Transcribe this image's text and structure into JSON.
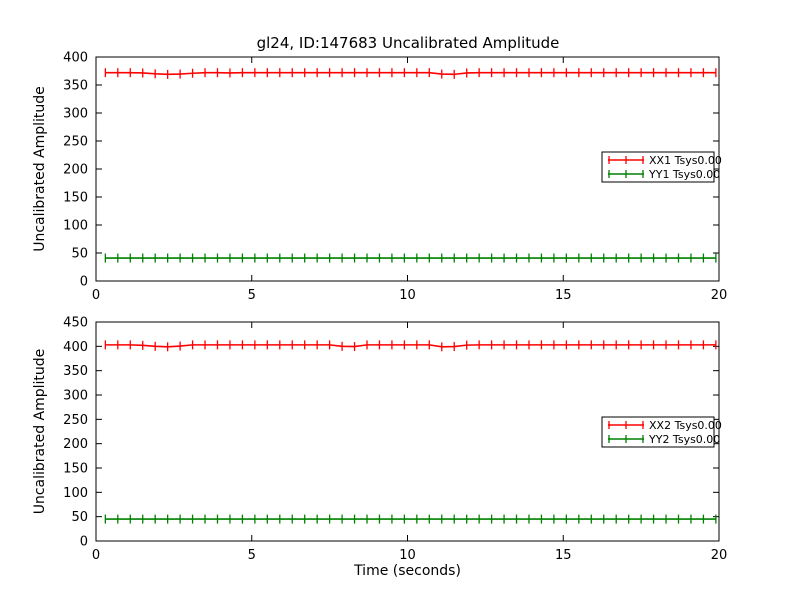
{
  "title": "gl24, ID:147683 Uncalibrated Amplitude",
  "colors": {
    "red": "#ff0000",
    "green": "#008000",
    "axis": "#000000",
    "background": "#ffffff"
  },
  "chart_data": [
    {
      "type": "line",
      "marker_style": "errorbar-caps",
      "xlabel": "",
      "ylabel": "Uncalibrated Amplitude",
      "xlim": [
        0,
        20
      ],
      "ylim": [
        0,
        400
      ],
      "xticks": [
        0,
        5,
        10,
        15,
        20
      ],
      "yticks": [
        0,
        50,
        100,
        150,
        200,
        250,
        300,
        350,
        400
      ],
      "grid": false,
      "legend_position": "center-right",
      "x": [
        0.3,
        0.7,
        1.1,
        1.5,
        1.9,
        2.3,
        2.7,
        3.1,
        3.5,
        3.9,
        4.3,
        4.7,
        5.1,
        5.5,
        5.9,
        6.3,
        6.7,
        7.1,
        7.5,
        7.9,
        8.3,
        8.7,
        9.1,
        9.5,
        9.9,
        10.3,
        10.7,
        11.1,
        11.5,
        11.9,
        12.3,
        12.7,
        13.1,
        13.5,
        13.9,
        14.3,
        14.7,
        15.1,
        15.5,
        15.9,
        16.3,
        16.7,
        17.1,
        17.5,
        17.9,
        18.3,
        18.7,
        19.1,
        19.5,
        19.9
      ],
      "series": [
        {
          "name": "XX1 Tsys0.00",
          "color": "#ff0000",
          "values": [
            372,
            372,
            372,
            371.5,
            370,
            369,
            369.5,
            371,
            372,
            372,
            371.5,
            372,
            372,
            372,
            372,
            372,
            372,
            372,
            372,
            372,
            372,
            372,
            372,
            372,
            372,
            372,
            372,
            369.5,
            369,
            371.5,
            372,
            372,
            372,
            372,
            372,
            372,
            372,
            372,
            372,
            372,
            372,
            372,
            372,
            372,
            372,
            372,
            372,
            372,
            372,
            372
          ]
        },
        {
          "name": "YY1 Tsys0.00",
          "color": "#008000",
          "values": [
            41,
            41,
            41,
            41,
            41,
            41,
            41,
            41,
            41,
            41,
            41,
            41,
            41,
            41,
            41,
            41,
            41,
            41,
            41,
            41,
            41,
            41,
            41,
            41,
            41,
            41,
            41,
            41,
            41,
            41,
            41,
            41,
            41,
            41,
            41,
            41,
            41,
            41,
            41,
            41,
            41,
            41,
            41,
            41,
            41,
            41,
            41,
            41,
            41,
            41
          ]
        }
      ]
    },
    {
      "type": "line",
      "marker_style": "errorbar-caps",
      "xlabel": "Time (seconds)",
      "ylabel": "Uncalibrated Amplitude",
      "xlim": [
        0,
        20
      ],
      "ylim": [
        0,
        450
      ],
      "xticks": [
        0,
        5,
        10,
        15,
        20
      ],
      "yticks": [
        0,
        50,
        100,
        150,
        200,
        250,
        300,
        350,
        400,
        450
      ],
      "grid": false,
      "legend_position": "center-right",
      "x": [
        0.3,
        0.7,
        1.1,
        1.5,
        1.9,
        2.3,
        2.7,
        3.1,
        3.5,
        3.9,
        4.3,
        4.7,
        5.1,
        5.5,
        5.9,
        6.3,
        6.7,
        7.1,
        7.5,
        7.9,
        8.3,
        8.7,
        9.1,
        9.5,
        9.9,
        10.3,
        10.7,
        11.1,
        11.5,
        11.9,
        12.3,
        12.7,
        13.1,
        13.5,
        13.9,
        14.3,
        14.7,
        15.1,
        15.5,
        15.9,
        16.3,
        16.7,
        17.1,
        17.5,
        17.9,
        18.3,
        18.7,
        19.1,
        19.5,
        19.9
      ],
      "series": [
        {
          "name": "XX2 Tsys0.00",
          "color": "#ff0000",
          "values": [
            403,
            403,
            403,
            402,
            400,
            399,
            400.5,
            403,
            403,
            403,
            403,
            403,
            403,
            403,
            403,
            403,
            403,
            403,
            403,
            400,
            399.5,
            403,
            403,
            403,
            403,
            403,
            403,
            399,
            399.5,
            402.5,
            403,
            403,
            403,
            403,
            403,
            403,
            403,
            403,
            403,
            403,
            403,
            403,
            403,
            403,
            403,
            403,
            403,
            403,
            403,
            403
          ]
        },
        {
          "name": "YY2 Tsys0.00",
          "color": "#008000",
          "values": [
            45,
            45,
            45,
            45,
            45,
            45,
            45,
            45,
            45,
            45,
            45,
            45,
            45,
            45,
            45,
            45,
            45,
            45,
            45,
            45,
            45,
            45,
            45,
            45,
            45,
            45,
            45,
            45,
            45,
            45,
            45,
            45,
            45,
            45,
            45,
            45,
            45,
            45,
            45,
            45,
            45,
            45,
            45,
            45,
            45,
            45,
            45,
            45,
            45,
            45
          ]
        }
      ]
    }
  ]
}
